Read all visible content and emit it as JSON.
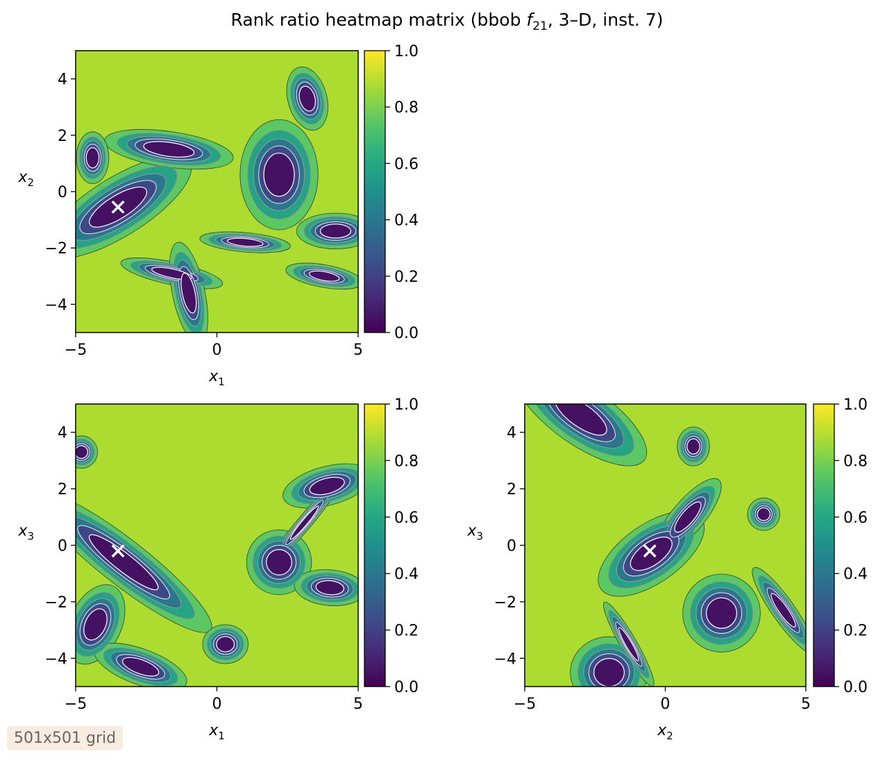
{
  "title": {
    "prefix": "Rank ratio heatmap matrix (bbob ",
    "func_symbol": "f",
    "func_subscript": "21",
    "suffix": ", 3–D, inst. 7)"
  },
  "grid_badge": "501x501 grid",
  "chart_data": [
    {
      "type": "heatmap",
      "panel": "x1-x2",
      "xlabel": "x1",
      "ylabel": "x2",
      "xlim": [
        -5,
        5
      ],
      "ylim": [
        -5,
        5
      ],
      "xticks": [
        -5,
        0,
        5
      ],
      "yticks": [
        -4,
        -2,
        0,
        2,
        4
      ],
      "colorbar": {
        "range": [
          0,
          1
        ],
        "ticks": [
          0.0,
          0.2,
          0.4,
          0.6,
          0.8,
          1.0
        ],
        "colormap": "viridis"
      },
      "optimum_marker": {
        "x": -3.5,
        "y": -0.55,
        "symbol": "×"
      },
      "basins": [
        {
          "cx": -3.5,
          "cy": -0.55,
          "a": 2.6,
          "b": 0.9,
          "angle": 32
        },
        {
          "cx": -1.7,
          "cy": 1.5,
          "a": 2.0,
          "b": 0.55,
          "angle": -8
        },
        {
          "cx": -4.4,
          "cy": 1.2,
          "a": 0.5,
          "b": 0.8,
          "angle": 0
        },
        {
          "cx": 2.2,
          "cy": 0.6,
          "a": 1.2,
          "b": 1.7,
          "angle": 0
        },
        {
          "cx": 3.2,
          "cy": 3.3,
          "a": 0.6,
          "b": 1.0,
          "angle": 15
        },
        {
          "cx": 4.2,
          "cy": -1.4,
          "a": 1.2,
          "b": 0.55,
          "angle": 0
        },
        {
          "cx": 1.0,
          "cy": -1.8,
          "a": 1.4,
          "b": 0.3,
          "angle": -5
        },
        {
          "cx": -1.6,
          "cy": -2.9,
          "a": 1.6,
          "b": 0.35,
          "angle": -12
        },
        {
          "cx": -1.0,
          "cy": -3.6,
          "a": 0.5,
          "b": 1.6,
          "angle": 12
        },
        {
          "cx": 3.8,
          "cy": -3.0,
          "a": 1.2,
          "b": 0.35,
          "angle": -10
        }
      ]
    },
    {
      "type": "heatmap",
      "panel": "x1-x3",
      "xlabel": "x1",
      "ylabel": "x3",
      "xlim": [
        -5,
        5
      ],
      "ylim": [
        -5,
        5
      ],
      "xticks": [
        -5,
        0,
        5
      ],
      "yticks": [
        -4,
        -2,
        0,
        2,
        4
      ],
      "colorbar": {
        "range": [
          0,
          1
        ],
        "ticks": [
          0.0,
          0.2,
          0.4,
          0.6,
          0.8,
          1.0
        ],
        "colormap": "viridis"
      },
      "optimum_marker": {
        "x": -3.5,
        "y": -0.2,
        "symbol": "×"
      },
      "basins": [
        {
          "cx": -3.3,
          "cy": -0.6,
          "a": 3.4,
          "b": 0.7,
          "angle": -38
        },
        {
          "cx": 2.2,
          "cy": -0.6,
          "a": 1.0,
          "b": 1.0,
          "angle": 0
        },
        {
          "cx": 3.9,
          "cy": 2.1,
          "a": 1.4,
          "b": 0.6,
          "angle": 15
        },
        {
          "cx": 3.1,
          "cy": 0.8,
          "a": 1.7,
          "b": 0.22,
          "angle": 50
        },
        {
          "cx": 4.0,
          "cy": -1.5,
          "a": 1.1,
          "b": 0.55,
          "angle": -5
        },
        {
          "cx": -4.3,
          "cy": -2.8,
          "a": 0.8,
          "b": 1.3,
          "angle": -25
        },
        {
          "cx": -2.7,
          "cy": -4.3,
          "a": 1.5,
          "b": 0.55,
          "angle": -20
        },
        {
          "cx": -4.8,
          "cy": 3.3,
          "a": 0.5,
          "b": 0.5,
          "angle": 0
        },
        {
          "cx": 0.3,
          "cy": -3.5,
          "a": 0.7,
          "b": 0.6,
          "angle": 0
        }
      ]
    },
    {
      "type": "heatmap",
      "panel": "x2-x3",
      "xlabel": "x2",
      "ylabel": "x3",
      "xlim": [
        -5,
        5
      ],
      "ylim": [
        -5,
        5
      ],
      "xticks": [
        -5,
        0,
        5
      ],
      "yticks": [
        -4,
        -2,
        0,
        2,
        4
      ],
      "colorbar": {
        "range": [
          0,
          1
        ],
        "ticks": [
          0.0,
          0.2,
          0.4,
          0.6,
          0.8,
          1.0
        ],
        "colormap": "viridis"
      },
      "optimum_marker": {
        "x": -0.55,
        "y": -0.2,
        "symbol": "×"
      },
      "basins": [
        {
          "cx": -0.5,
          "cy": -0.3,
          "a": 1.9,
          "b": 0.9,
          "angle": 35
        },
        {
          "cx": 0.8,
          "cy": 1.0,
          "a": 1.5,
          "b": 0.5,
          "angle": 50
        },
        {
          "cx": -3.0,
          "cy": 4.6,
          "a": 2.4,
          "b": 0.9,
          "angle": -35
        },
        {
          "cx": 2.0,
          "cy": -2.4,
          "a": 1.2,
          "b": 1.2,
          "angle": 0
        },
        {
          "cx": -2.0,
          "cy": -4.5,
          "a": 1.2,
          "b": 1.1,
          "angle": 0
        },
        {
          "cx": -1.3,
          "cy": -3.5,
          "a": 1.5,
          "b": 0.25,
          "angle": -60
        },
        {
          "cx": 4.2,
          "cy": -2.3,
          "a": 1.6,
          "b": 0.35,
          "angle": -55
        },
        {
          "cx": 1.0,
          "cy": 3.5,
          "a": 0.5,
          "b": 0.6,
          "angle": 0
        },
        {
          "cx": 3.5,
          "cy": 1.1,
          "a": 0.5,
          "b": 0.5,
          "angle": 0
        }
      ]
    }
  ]
}
